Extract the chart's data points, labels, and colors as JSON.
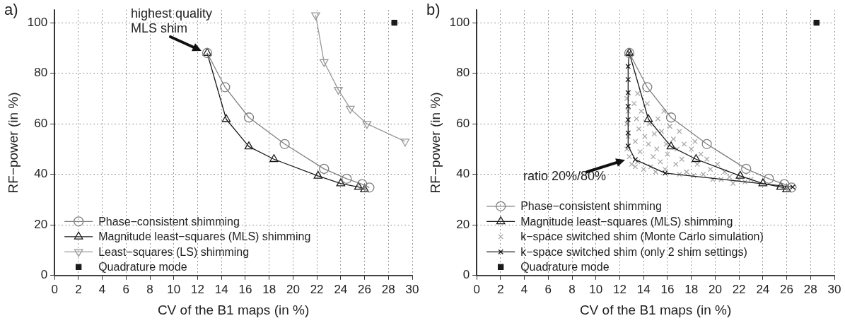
{
  "chart_data": [
    {
      "type": "line",
      "title": "a)",
      "xlabel": "CV of the B1 maps (in %)",
      "ylabel": "RF−power (in %)",
      "xlim": [
        0,
        30
      ],
      "ylim": [
        0,
        105
      ],
      "xticks": [
        0,
        2,
        4,
        6,
        8,
        10,
        12,
        14,
        16,
        18,
        20,
        22,
        24,
        26,
        28,
        30
      ],
      "yticks": [
        0,
        20,
        40,
        60,
        80,
        100
      ],
      "grid": true,
      "legend": "bottom left",
      "line_style": "solid",
      "annotations": [
        {
          "text": "highest quality\nMLS shim",
          "x": 12.8,
          "y": 88
        }
      ],
      "series": [
        {
          "name": "Phase−consistent shimming",
          "type": "line",
          "marker": "circle",
          "color": "#808080",
          "x": [
            12.8,
            14.3,
            16.3,
            19.3,
            22.6,
            24.5,
            25.8,
            26.4
          ],
          "values": [
            88,
            74.5,
            62.5,
            52,
            42.2,
            38.3,
            36.1,
            34.8
          ]
        },
        {
          "name": "Magnitude least−squares (MLS) shimming",
          "type": "line",
          "marker": "triangle",
          "color": "#1a1a1a",
          "x": [
            12.8,
            14.4,
            16.3,
            18.4,
            22.1,
            24.0,
            25.5,
            26.0
          ],
          "values": [
            88,
            61.8,
            51,
            46,
            39.4,
            36.4,
            35,
            34
          ]
        },
        {
          "name": "Least−squares (LS) shimming",
          "type": "line",
          "marker": "triangle_down",
          "color": "#999999",
          "x": [
            21.9,
            22.6,
            23.8,
            24.8,
            26.2,
            29.4
          ],
          "values": [
            103,
            84.5,
            73.5,
            66,
            60,
            53
          ]
        },
        {
          "name": "Quadrature mode",
          "type": "scatter",
          "marker": "square",
          "color": "#1a1a1a",
          "x": [
            28.5
          ],
          "values": [
            100
          ]
        }
      ]
    },
    {
      "type": "line",
      "title": "b)",
      "xlabel": "CV of the B1 maps (in %)",
      "ylabel": "RF−power (in %)",
      "xlim": [
        0,
        30
      ],
      "ylim": [
        0,
        105
      ],
      "xticks": [
        0,
        2,
        4,
        6,
        8,
        10,
        12,
        14,
        16,
        18,
        20,
        22,
        24,
        26,
        28,
        30
      ],
      "yticks": [
        0,
        20,
        40,
        60,
        80,
        100
      ],
      "grid": true,
      "legend": "bottom left",
      "line_style": "solid",
      "annotations": [
        {
          "text": "ratio 20%/80%",
          "x": 12.8,
          "y": 46
        }
      ],
      "series": [
        {
          "name": "Phase−consistent shimming",
          "type": "line",
          "marker": "circle",
          "color": "#808080",
          "x": [
            12.8,
            14.3,
            16.3,
            19.3,
            22.6,
            24.5,
            25.8,
            26.4
          ],
          "values": [
            88,
            74.5,
            62.5,
            52,
            42.2,
            38.3,
            36.1,
            34.8
          ]
        },
        {
          "name": "Magnitude least−squares (MLS) shimming",
          "type": "line",
          "marker": "triangle",
          "color": "#1a1a1a",
          "x": [
            12.8,
            14.4,
            16.3,
            18.4,
            22.1,
            24.0,
            25.5,
            26.0
          ],
          "values": [
            88,
            61.8,
            51,
            46,
            39.4,
            36.4,
            35,
            34
          ]
        },
        {
          "name": "k−space switched shim (Monte Carlo simulation)",
          "type": "scatter",
          "marker": "cross",
          "color": "#aaaaaa",
          "x": [
            12.6,
            12.7,
            12.6,
            12.7,
            12.6,
            12.8,
            13.0,
            13.3,
            13.2,
            13.5,
            13.4,
            13.6,
            13.3,
            13.7,
            13.5,
            14.0,
            13.8,
            14.1,
            14.3,
            14.5,
            14.4,
            14.8,
            14.6,
            15.0,
            14.9,
            15.2,
            15.1,
            15.5,
            15.7,
            15.4,
            15.9,
            15.8,
            16.0,
            16.2,
            16.5,
            16.8,
            17.0,
            16.7,
            17.2,
            17.4,
            17.6,
            17.0,
            18.0,
            18.3,
            18.5,
            18.8,
            19.0,
            19.3,
            19.6,
            19.8,
            18.2,
            20.2,
            20.5,
            20.8,
            21.2,
            21.5,
            22.0,
            22.5,
            23.0
          ],
          "values": [
            70,
            65,
            60,
            55,
            50,
            47,
            44,
            43,
            68,
            72,
            62,
            58,
            53,
            49,
            45,
            42,
            65,
            55,
            68,
            60,
            52,
            47,
            43,
            41,
            56,
            62,
            50,
            57,
            65,
            45,
            52,
            42,
            48,
            59,
            54,
            50,
            57,
            44,
            46,
            52,
            41,
            40,
            50,
            53,
            44,
            48,
            40,
            46,
            42,
            38,
            39.5,
            44,
            38,
            41,
            39,
            36.5,
            38,
            37,
            38
          ]
        },
        {
          "name": "k−space switched shim (only 2 shim settings)",
          "type": "line",
          "marker": "cross",
          "color": "#1a1a1a",
          "x": [
            12.8,
            12.7,
            12.7,
            12.7,
            12.7,
            12.7,
            12.7,
            12.7,
            13.3,
            15.8,
            26.5
          ],
          "values": [
            88,
            82.7,
            77.5,
            72.3,
            66.9,
            61.6,
            56.4,
            51.2,
            45.8,
            40.5,
            35
          ]
        },
        {
          "name": "Quadrature mode",
          "type": "scatter",
          "marker": "square",
          "color": "#1a1a1a",
          "x": [
            28.5
          ],
          "values": [
            100
          ]
        }
      ]
    }
  ]
}
